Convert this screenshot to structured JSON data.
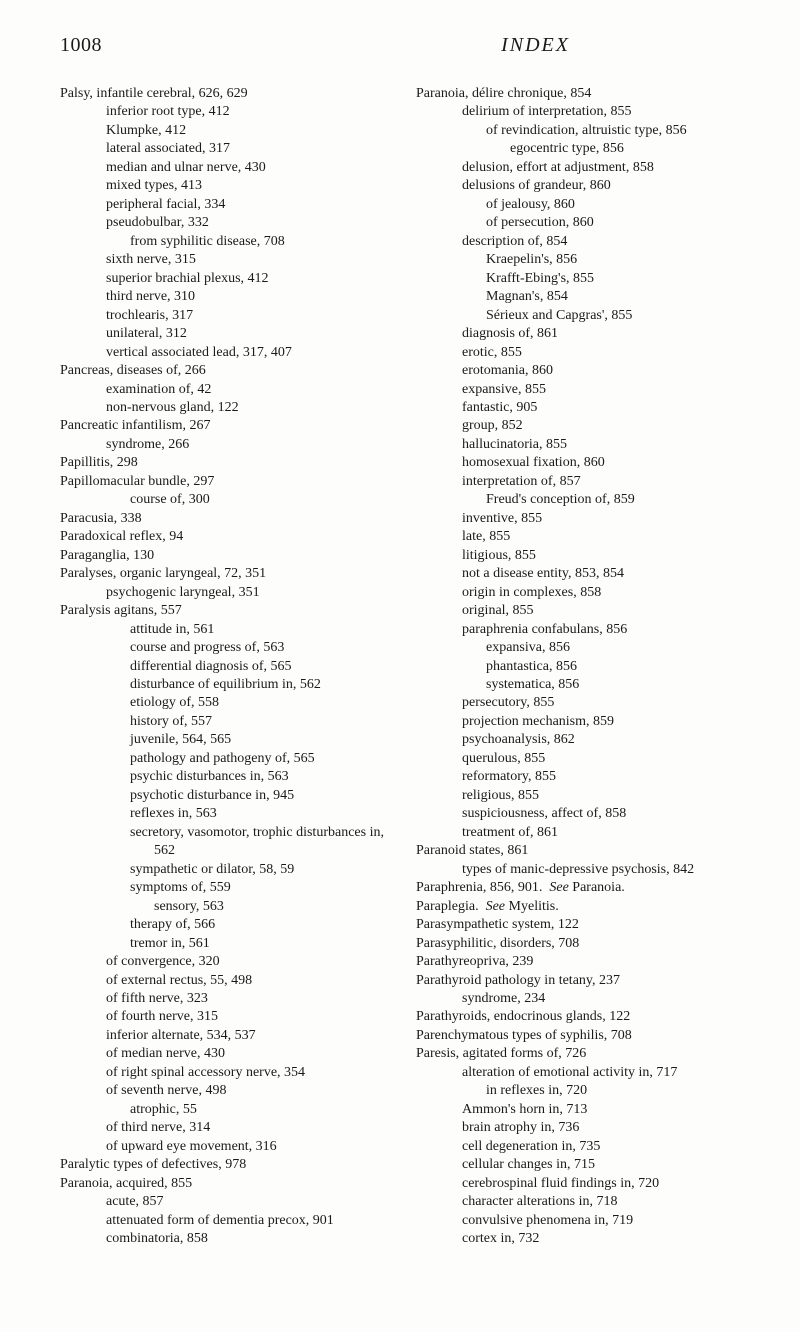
{
  "page_number": "1008",
  "running_title": "INDEX",
  "left": [
    {
      "i": "i1",
      "t": "Palsy, infantile cerebral, 626, 629"
    },
    {
      "i": "c2",
      "t": "inferior root type, 412"
    },
    {
      "i": "c2",
      "t": "Klumpke, 412"
    },
    {
      "i": "c2",
      "t": "lateral associated, 317"
    },
    {
      "i": "c2",
      "t": "median and ulnar nerve, 430"
    },
    {
      "i": "c2",
      "t": "mixed types, 413"
    },
    {
      "i": "c2",
      "t": "peripheral facial, 334"
    },
    {
      "i": "c2",
      "t": "pseudobulbar, 332"
    },
    {
      "i": "c3",
      "t": "from syphilitic disease, 708"
    },
    {
      "i": "c2",
      "t": "sixth nerve, 315"
    },
    {
      "i": "c2",
      "t": "superior brachial plexus, 412"
    },
    {
      "i": "c2",
      "t": "third nerve, 310"
    },
    {
      "i": "c2",
      "t": "trochlearis, 317"
    },
    {
      "i": "c2",
      "t": "unilateral, 312"
    },
    {
      "i": "c2",
      "t": "vertical associated lead, 317, 407"
    },
    {
      "i": "i1",
      "t": "Pancreas, diseases of, 266"
    },
    {
      "i": "c2",
      "t": "examination of, 42"
    },
    {
      "i": "c2",
      "t": "non-nervous gland, 122"
    },
    {
      "i": "i1",
      "t": "Pancreatic infantilism, 267"
    },
    {
      "i": "c2",
      "t": "syndrome, 266"
    },
    {
      "i": "i1",
      "t": "Papillitis, 298"
    },
    {
      "i": "i1",
      "t": "Papillomacular bundle, 297"
    },
    {
      "i": "c3",
      "t": "course of, 300"
    },
    {
      "i": "i1",
      "t": "Paracusia, 338"
    },
    {
      "i": "i1",
      "t": "Paradoxical reflex, 94"
    },
    {
      "i": "i1",
      "t": "Paraganglia, 130"
    },
    {
      "i": "i1",
      "t": "Paralyses, organic laryngeal, 72, 351"
    },
    {
      "i": "c2",
      "t": "psychogenic laryngeal, 351"
    },
    {
      "i": "i1",
      "t": "Paralysis agitans, 557"
    },
    {
      "i": "c3",
      "t": "attitude in, 561"
    },
    {
      "i": "i3",
      "t": "course and progress of, 563"
    },
    {
      "i": "i3",
      "t": "differential diagnosis of, 565"
    },
    {
      "i": "i3",
      "t": "disturbance of equilibrium in, 562"
    },
    {
      "i": "c3",
      "t": "etiology of, 558"
    },
    {
      "i": "c3",
      "t": "history of, 557"
    },
    {
      "i": "c3",
      "t": "juvenile, 564, 565"
    },
    {
      "i": "i3",
      "t": "pathology and pathogeny of, 565"
    },
    {
      "i": "i3",
      "t": "psychic disturbances in, 563"
    },
    {
      "i": "i3",
      "t": "psychotic disturbance in, 945"
    },
    {
      "i": "c3",
      "t": "reflexes in, 563"
    },
    {
      "i": "i3",
      "t": "secretory, vasomotor, trophic disturbances in, 562"
    },
    {
      "i": "i3",
      "t": "sympathetic or dilator, 58, 59"
    },
    {
      "i": "c3",
      "t": "symptoms of, 559"
    },
    {
      "i": "i4",
      "t": "sensory, 563"
    },
    {
      "i": "c3",
      "t": "therapy of, 566"
    },
    {
      "i": "c3",
      "t": "tremor in, 561"
    },
    {
      "i": "c2",
      "t": "of convergence, 320"
    },
    {
      "i": "c2",
      "t": "of external rectus, 55, 498"
    },
    {
      "i": "c2",
      "t": "of fifth nerve, 323"
    },
    {
      "i": "c2",
      "t": "of fourth nerve, 315"
    },
    {
      "i": "c2",
      "t": "inferior alternate, 534, 537"
    },
    {
      "i": "c2",
      "t": "of median nerve, 430"
    },
    {
      "i": "i2",
      "t": "of right spinal accessory nerve, 354"
    },
    {
      "i": "c2",
      "t": "of seventh nerve, 498"
    },
    {
      "i": "c3",
      "t": "atrophic, 55"
    },
    {
      "i": "c2",
      "t": "of third nerve, 314"
    },
    {
      "i": "i2",
      "t": "of upward eye movement, 316"
    },
    {
      "i": "i1",
      "t": "Paralytic types of defectives, 978"
    },
    {
      "i": "i1",
      "t": "Paranoia, acquired, 855"
    },
    {
      "i": "c2",
      "t": "acute, 857"
    },
    {
      "i": "i2",
      "t": "attenuated form of dementia precox, 901"
    },
    {
      "i": "c2",
      "t": "combinatoria, 858"
    }
  ],
  "right": [
    {
      "i": "i1",
      "t": "Paranoia, délire chronique, 854"
    },
    {
      "i": "i2",
      "t": "delirium of interpretation, 855"
    },
    {
      "i": "i3",
      "t": "of revindication, altruistic type, 856"
    },
    {
      "i": "i4",
      "t": "egocentric type, 856"
    },
    {
      "i": "i2",
      "t": "delusion, effort at adjustment, 858"
    },
    {
      "i": "i2",
      "t": "delusions of grandeur, 860"
    },
    {
      "i": "c3",
      "t": "of jealousy, 860"
    },
    {
      "i": "c3",
      "t": "of persecution, 860"
    },
    {
      "i": "i2",
      "t": "description of, 854"
    },
    {
      "i": "c3",
      "t": "Kraepelin's, 856"
    },
    {
      "i": "c3",
      "t": "Krafft-Ebing's, 855"
    },
    {
      "i": "c3",
      "t": "Magnan's, 854"
    },
    {
      "i": "i3",
      "t": "Sérieux and Capgras', 855"
    },
    {
      "i": "c2",
      "t": "diagnosis of, 861"
    },
    {
      "i": "c2",
      "t": "erotic, 855"
    },
    {
      "i": "c2",
      "t": "erotomania, 860"
    },
    {
      "i": "c2",
      "t": "expansive, 855"
    },
    {
      "i": "c2",
      "t": "fantastic, 905"
    },
    {
      "i": "c2",
      "t": "group, 852"
    },
    {
      "i": "c2",
      "t": "hallucinatoria, 855"
    },
    {
      "i": "i2",
      "t": "homosexual fixation, 860"
    },
    {
      "i": "c2",
      "t": "interpretation of, 857"
    },
    {
      "i": "i3",
      "t": "Freud's conception of, 859"
    },
    {
      "i": "c2",
      "t": "inventive, 855"
    },
    {
      "i": "c2",
      "t": "late, 855"
    },
    {
      "i": "c2",
      "t": "litigious, 855"
    },
    {
      "i": "i2",
      "t": "not a disease entity, 853, 854"
    },
    {
      "i": "i2",
      "t": "origin in complexes, 858"
    },
    {
      "i": "c2",
      "t": "original, 855"
    },
    {
      "i": "i2",
      "t": "paraphrenia confabulans, 856"
    },
    {
      "i": "c3",
      "t": "expansiva, 856"
    },
    {
      "i": "c3",
      "t": "phantastica, 856"
    },
    {
      "i": "c3",
      "t": "systematica, 856"
    },
    {
      "i": "c2",
      "t": "persecutory, 855"
    },
    {
      "i": "i2",
      "t": "projection mechanism, 859"
    },
    {
      "i": "c2",
      "t": "psychoanalysis, 862"
    },
    {
      "i": "c2",
      "t": "querulous, 855"
    },
    {
      "i": "c2",
      "t": "reformatory, 855"
    },
    {
      "i": "c2",
      "t": "religious, 855"
    },
    {
      "i": "i2",
      "t": "suspiciousness, affect of, 858"
    },
    {
      "i": "c2",
      "t": "treatment of, 861"
    },
    {
      "i": "i1",
      "t": "Paranoid states, 861"
    },
    {
      "i": "i2",
      "t": "types of manic-depressive psychosis, 842"
    },
    {
      "i": "i1",
      "html": "Paraphrenia, 856, 901.&nbsp;&nbsp;<em>See</em> Paranoia."
    },
    {
      "i": "i1",
      "html": "Paraplegia.&nbsp;&nbsp;<em>See</em> Myelitis."
    },
    {
      "i": "i1",
      "t": "Parasympathetic system, 122"
    },
    {
      "i": "i1",
      "t": "Parasyphilitic, disorders, 708"
    },
    {
      "i": "i1",
      "t": "Parathyreopriva, 239"
    },
    {
      "i": "i1",
      "t": "Parathyroid pathology in tetany, 237"
    },
    {
      "i": "c2",
      "t": "syndrome, 234"
    },
    {
      "i": "i1",
      "t": "Parathyroids, endocrinous glands, 122"
    },
    {
      "i": "i1",
      "t": "Parenchymatous types of syphilis, 708"
    },
    {
      "i": "i1",
      "t": "Paresis, agitated forms of, 726"
    },
    {
      "i": "i2",
      "t": "alteration of emotional activity in, 717"
    },
    {
      "i": "c3",
      "t": "in reflexes in, 720"
    },
    {
      "i": "i2",
      "t": "Ammon's horn in, 713"
    },
    {
      "i": "i2",
      "t": "brain atrophy in, 736"
    },
    {
      "i": "i2",
      "t": "cell degeneration in, 735"
    },
    {
      "i": "i2",
      "t": "cellular changes in, 715"
    },
    {
      "i": "i2",
      "t": "cerebrospinal fluid findings in, 720"
    },
    {
      "i": "i2",
      "t": "character alterations in, 718"
    },
    {
      "i": "i2",
      "t": "convulsive phenomena in, 719"
    },
    {
      "i": "c2",
      "t": "cortex in, 732"
    }
  ]
}
